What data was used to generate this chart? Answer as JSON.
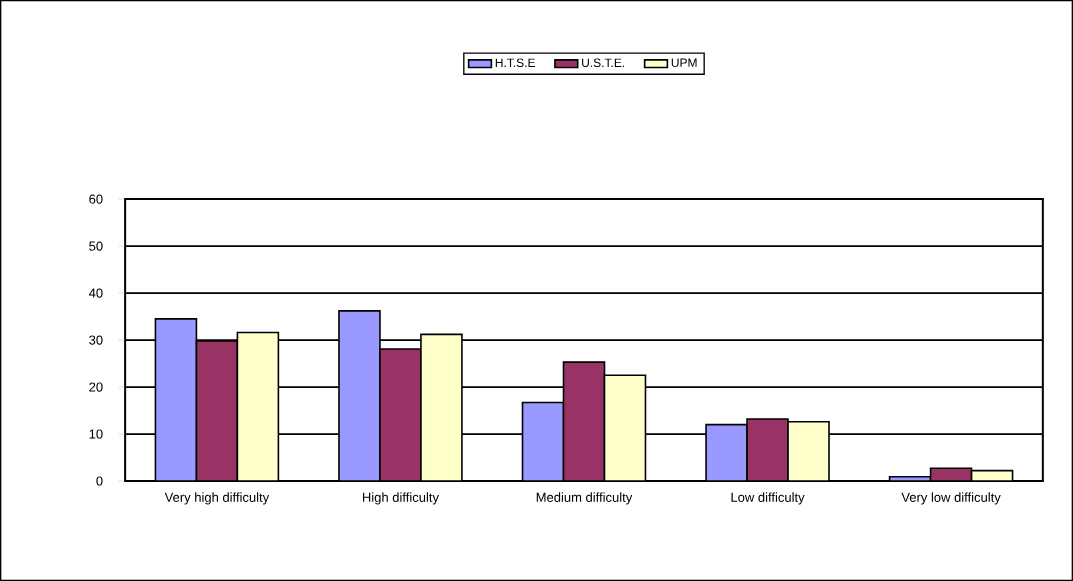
{
  "chart_data": {
    "type": "bar",
    "categories": [
      "Very high difficulty",
      "High difficulty",
      "Medium difficulty",
      "Low difficulty",
      "Very low difficulty"
    ],
    "series": [
      {
        "name": "H.T.S.E",
        "color": "#9999ff",
        "values": [
          34.5,
          36.2,
          16.7,
          12.0,
          0.9
        ]
      },
      {
        "name": "U.S.T.E.",
        "color": "#993366",
        "values": [
          29.8,
          28.1,
          25.3,
          13.2,
          2.7
        ]
      },
      {
        "name": "UPM",
        "color": "#ffffcc",
        "values": [
          31.6,
          31.2,
          22.5,
          12.6,
          2.2
        ]
      }
    ],
    "ylim": [
      0,
      60
    ],
    "yticks": [
      0,
      10,
      20,
      30,
      40,
      50,
      60
    ],
    "grid": "y",
    "legend": "top"
  }
}
